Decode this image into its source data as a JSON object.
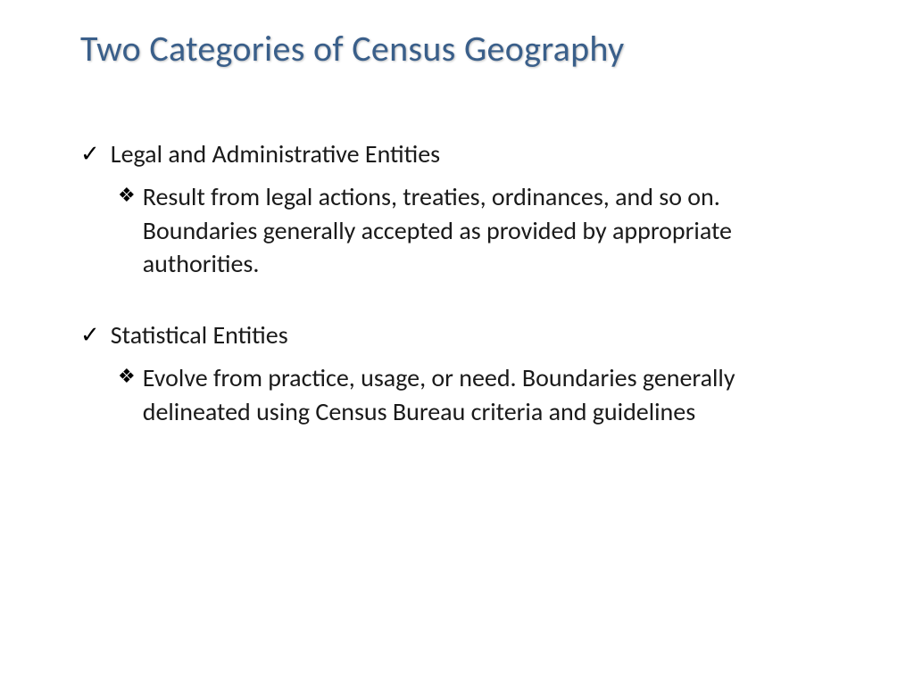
{
  "slide": {
    "title": "Two Categories of Census Geography",
    "title_color": "#3a5f8a",
    "title_fontsize": 40,
    "background_color": "#ffffff",
    "body_fontsize": 28,
    "body_color": "#1a1a1a",
    "bullets": [
      {
        "text": "Legal and Administrative Entities",
        "sub_bullets": [
          {
            "text": "Result from legal actions, treaties, ordinances, and so on. Boundaries generally accepted as provided by appropriate authorities."
          }
        ]
      },
      {
        "text": "Statistical Entities",
        "sub_bullets": [
          {
            "text": "Evolve from practice, usage, or need. Boundaries generally delineated using Census Bureau criteria and guidelines"
          }
        ]
      }
    ],
    "icons": {
      "checkmark": "✓",
      "diamond": "❖"
    }
  }
}
